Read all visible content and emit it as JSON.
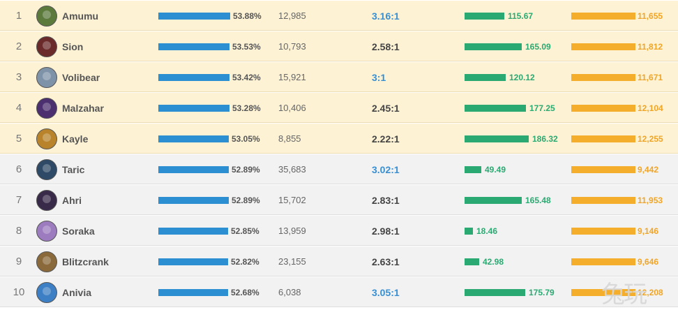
{
  "rows": [
    {
      "rank": "1",
      "name": "Amumu",
      "win": "53.88%",
      "win_frac": 0.5388,
      "games": "12,985",
      "kda": "3.16:1",
      "kda_blue": true,
      "cs": "115.67",
      "cs_val": 115.67,
      "gold": "11,655",
      "avatar": "amumu-portrait",
      "tier": "top",
      "avatar_color": "#5b7a3c"
    },
    {
      "rank": "2",
      "name": "Sion",
      "win": "53.53%",
      "win_frac": 0.5353,
      "games": "10,793",
      "kda": "2.58:1",
      "kda_blue": false,
      "cs": "165.09",
      "cs_val": 165.09,
      "gold": "11,812",
      "avatar": "sion-portrait",
      "tier": "top",
      "avatar_color": "#6a2a2a"
    },
    {
      "rank": "3",
      "name": "Volibear",
      "win": "53.42%",
      "win_frac": 0.5342,
      "games": "15,921",
      "kda": "3:1",
      "kda_blue": true,
      "cs": "120.12",
      "cs_val": 120.12,
      "gold": "11,671",
      "avatar": "volibear-portrait",
      "tier": "top",
      "avatar_color": "#7f93a8"
    },
    {
      "rank": "4",
      "name": "Malzahar",
      "win": "53.28%",
      "win_frac": 0.5328,
      "games": "10,406",
      "kda": "2.45:1",
      "kda_blue": false,
      "cs": "177.25",
      "cs_val": 177.25,
      "gold": "12,104",
      "avatar": "malzahar-portrait",
      "tier": "top",
      "avatar_color": "#4b2f6e"
    },
    {
      "rank": "5",
      "name": "Kayle",
      "win": "53.05%",
      "win_frac": 0.5305,
      "games": "8,855",
      "kda": "2.22:1",
      "kda_blue": false,
      "cs": "186.32",
      "cs_val": 186.32,
      "gold": "12,255",
      "avatar": "kayle-portrait",
      "tier": "top",
      "avatar_color": "#b8832b"
    },
    {
      "rank": "6",
      "name": "Taric",
      "win": "52.89%",
      "win_frac": 0.5289,
      "games": "35,683",
      "kda": "3.02:1",
      "kda_blue": true,
      "cs": "49.49",
      "cs_val": 49.49,
      "gold": "9,442",
      "avatar": "taric-portrait",
      "tier": "rest",
      "avatar_color": "#2e4a66"
    },
    {
      "rank": "7",
      "name": "Ahri",
      "win": "52.89%",
      "win_frac": 0.5289,
      "games": "15,702",
      "kda": "2.83:1",
      "kda_blue": false,
      "cs": "165.48",
      "cs_val": 165.48,
      "gold": "11,953",
      "avatar": "ahri-portrait",
      "tier": "rest",
      "avatar_color": "#3a2a4a"
    },
    {
      "rank": "8",
      "name": "Soraka",
      "win": "52.85%",
      "win_frac": 0.5285,
      "games": "13,959",
      "kda": "2.98:1",
      "kda_blue": false,
      "cs": "18.46",
      "cs_val": 18.46,
      "gold": "9,146",
      "avatar": "soraka-portrait",
      "tier": "rest",
      "avatar_color": "#9c7bbf"
    },
    {
      "rank": "9",
      "name": "Blitzcrank",
      "win": "52.82%",
      "win_frac": 0.5282,
      "games": "23,155",
      "kda": "2.63:1",
      "kda_blue": false,
      "cs": "42.98",
      "cs_val": 42.98,
      "gold": "9,646",
      "avatar": "blitzcrank-portrait",
      "tier": "rest",
      "avatar_color": "#8a6a3a"
    },
    {
      "rank": "10",
      "name": "Anivia",
      "win": "52.68%",
      "win_frac": 0.5268,
      "games": "6,038",
      "kda": "3.05:1",
      "kda_blue": true,
      "cs": "175.79",
      "cs_val": 175.79,
      "gold": "12,208",
      "avatar": "anivia-portrait",
      "tier": "rest",
      "avatar_color": "#3d7fc4"
    }
  ],
  "colors": {
    "win_bar": "#2b8fd2",
    "cs_bar": "#2aaa72",
    "gold_bar": "#f5ae2b",
    "kda_blue": "#3a8fd0",
    "top_row_bg": "#fdf2d4",
    "rest_row_bg": "#f2f2f2"
  },
  "watermark": "兔玩"
}
